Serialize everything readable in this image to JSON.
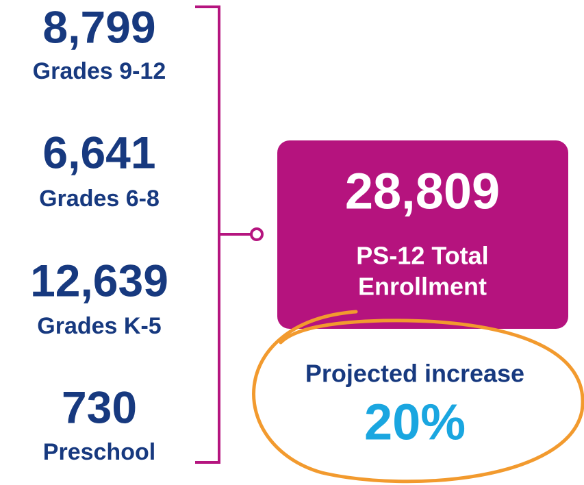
{
  "enrollment": [
    {
      "value": "8,799",
      "label": "Grades 9-12"
    },
    {
      "value": "6,641",
      "label": "Grades 6-8"
    },
    {
      "value": "12,639",
      "label": "Grades K-5"
    },
    {
      "value": "730",
      "label": "Preschool"
    }
  ],
  "total": {
    "value": "28,809",
    "label_lines": [
      "PS-12 Total",
      "Enrollment"
    ]
  },
  "projection": {
    "label": "Projected increase",
    "value": "20%"
  }
}
